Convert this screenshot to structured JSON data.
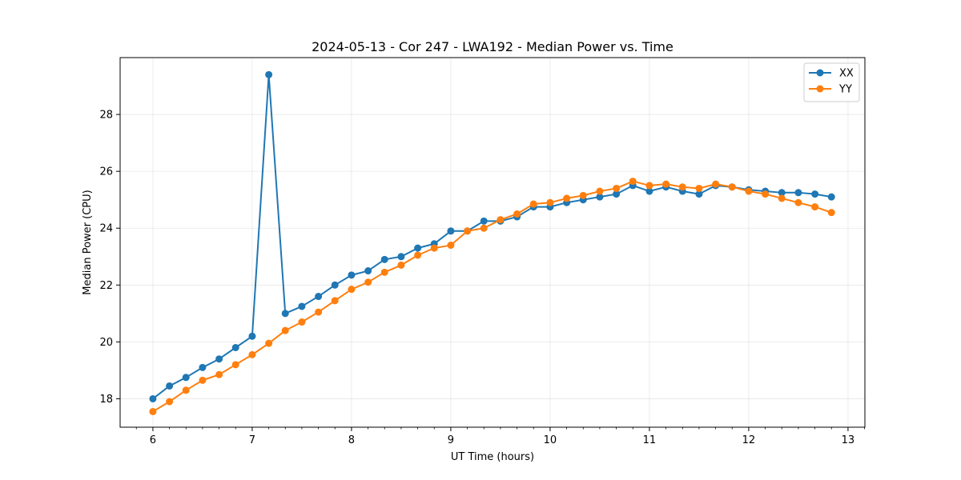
{
  "chart_data": {
    "type": "line",
    "title": "2024-05-13 - Cor 247 - LWA192 - Median Power vs. Time",
    "xlabel": "UT Time (hours)",
    "ylabel": "Median Power (CPU)",
    "xlim": [
      5.67,
      13.17
    ],
    "ylim": [
      17.0,
      30.0
    ],
    "xticks": [
      6,
      7,
      8,
      9,
      10,
      11,
      12,
      13
    ],
    "yticks": [
      18,
      20,
      22,
      24,
      26,
      28
    ],
    "grid": true,
    "legend_position": "top-right",
    "x": [
      6.0,
      6.167,
      6.333,
      6.5,
      6.667,
      6.833,
      7.0,
      7.167,
      7.333,
      7.5,
      7.667,
      7.833,
      8.0,
      8.167,
      8.333,
      8.5,
      8.667,
      8.833,
      9.0,
      9.167,
      9.333,
      9.5,
      9.667,
      9.833,
      10.0,
      10.167,
      10.333,
      10.5,
      10.667,
      10.833,
      11.0,
      11.167,
      11.333,
      11.5,
      11.667,
      11.833,
      12.0,
      12.167,
      12.333,
      12.5,
      12.667,
      12.833
    ],
    "series": [
      {
        "name": "XX",
        "color": "#1f77b4",
        "values": [
          18.0,
          18.45,
          18.75,
          19.1,
          19.4,
          19.8,
          20.2,
          29.4,
          21.0,
          21.25,
          21.6,
          22.0,
          22.35,
          22.5,
          22.9,
          23.0,
          23.3,
          23.45,
          23.9,
          23.9,
          24.25,
          24.25,
          24.4,
          24.75,
          24.75,
          24.9,
          25.0,
          25.1,
          25.2,
          25.5,
          25.3,
          25.45,
          25.3,
          25.2,
          25.5,
          25.45,
          25.35,
          25.3,
          25.25,
          25.25,
          25.2,
          25.1
        ]
      },
      {
        "name": "YY",
        "color": "#ff7f0e",
        "values": [
          17.55,
          17.9,
          18.3,
          18.65,
          18.85,
          19.2,
          19.55,
          19.95,
          20.4,
          20.7,
          21.05,
          21.45,
          21.85,
          22.1,
          22.45,
          22.7,
          23.05,
          23.3,
          23.4,
          23.9,
          24.0,
          24.3,
          24.5,
          24.85,
          24.9,
          25.05,
          25.15,
          25.3,
          25.4,
          25.65,
          25.5,
          25.55,
          25.45,
          25.4,
          25.55,
          25.45,
          25.3,
          25.2,
          25.05,
          24.9,
          24.75,
          24.55
        ]
      }
    ]
  }
}
